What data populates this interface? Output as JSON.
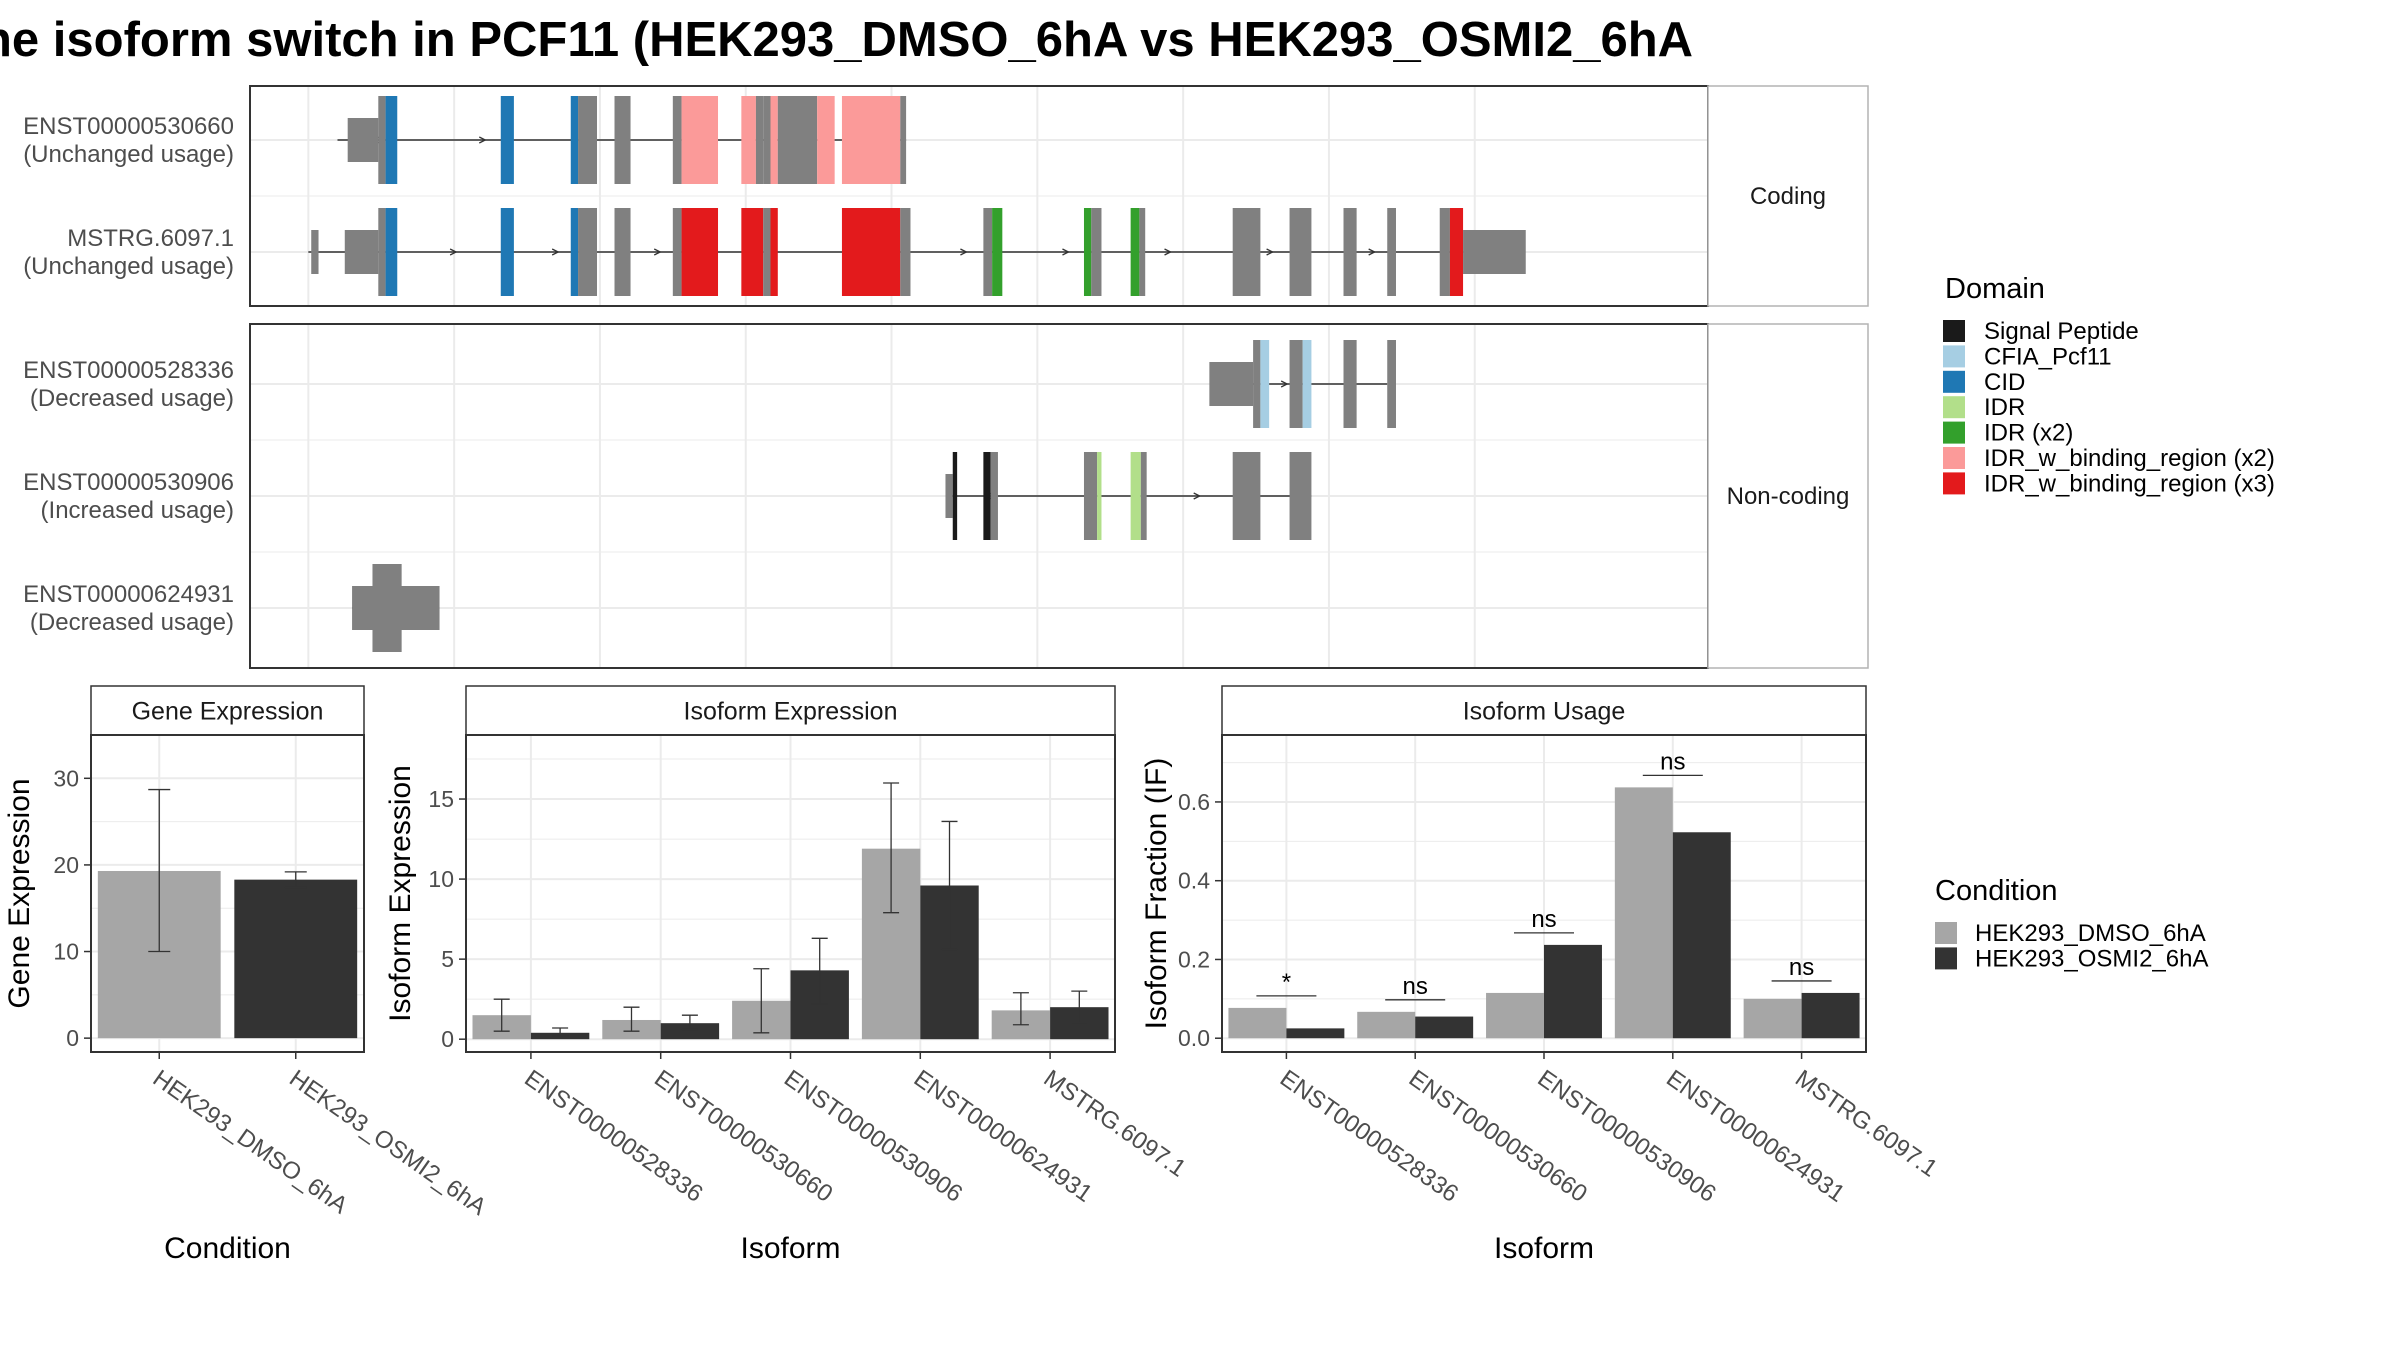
{
  "title": "he isoform switch in PCF11 (HEK293_DMSO_6hA vs HEK293_OSMI2_6hA",
  "colors": {
    "cond1": "#a6a6a6",
    "cond2": "#333333",
    "noncoding": "#808080",
    "grid": "#ebebeb",
    "panel_border": "#333333"
  },
  "domain_legend": {
    "title": "Domain",
    "items": [
      {
        "label": "Signal Peptide",
        "color": "#1a1a1a"
      },
      {
        "label": "CFIA_Pcf11",
        "color": "#a6cee3"
      },
      {
        "label": "CID",
        "color": "#1f78b4"
      },
      {
        "label": "IDR",
        "color": "#b2df8a"
      },
      {
        "label": "IDR (x2)",
        "color": "#33a02c"
      },
      {
        "label": "IDR_w_binding_region (x2)",
        "color": "#fb9a99"
      },
      {
        "label": "IDR_w_binding_region (x3)",
        "color": "#e31a1c"
      }
    ]
  },
  "condition_legend": {
    "title": "Condition",
    "items": [
      {
        "label": "HEK293_DMSO_6hA",
        "color": "#a6a6a6"
      },
      {
        "label": "HEK293_OSMI2_6hA",
        "color": "#333333"
      }
    ]
  },
  "structure": {
    "xlim": [
      0,
      100
    ],
    "facets": [
      {
        "label": "Coding",
        "transcripts": [
          {
            "name": "ENST00000530660",
            "status": "(Unchanged usage)",
            "line": [
              6,
              45
            ],
            "exons": [
              [
                6.7,
                8.8,
                "utr"
              ],
              [
                8.8,
                9.3,
                "cds"
              ],
              [
                9.3,
                10.1,
                "CID"
              ],
              [
                17.2,
                18.1,
                "CID"
              ],
              [
                22,
                22.5,
                "CID"
              ],
              [
                22.5,
                23.8,
                "cds"
              ],
              [
                25,
                26.1,
                "cds"
              ],
              [
                29,
                29.6,
                "cds"
              ],
              [
                29.6,
                32.1,
                "IDR_w_binding_region (x2)"
              ],
              [
                33.7,
                34.7,
                "IDR_w_binding_region (x2)"
              ],
              [
                34.7,
                35.2,
                "cds"
              ],
              [
                35.2,
                35.7,
                "cds"
              ],
              [
                35.7,
                36.2,
                "IDR_w_binding_region (x2)"
              ],
              [
                36.2,
                38.9,
                "cds"
              ],
              [
                38.9,
                40.1,
                "IDR_w_binding_region (x2)"
              ],
              [
                40.6,
                44.6,
                "IDR_w_binding_region (x2)"
              ],
              [
                44.6,
                45,
                "cds"
              ]
            ]
          },
          {
            "name": "MSTRG.6097.1",
            "status": "(Unchanged usage)",
            "line": [
              4,
              87
            ],
            "exons": [
              [
                4.2,
                4.7,
                "utr"
              ],
              [
                6.5,
                8.8,
                "utr"
              ],
              [
                8.8,
                9.3,
                "cds"
              ],
              [
                9.3,
                10.1,
                "CID"
              ],
              [
                17.2,
                18.1,
                "CID"
              ],
              [
                22,
                22.5,
                "CID"
              ],
              [
                22.5,
                23.8,
                "cds"
              ],
              [
                25,
                26.1,
                "cds"
              ],
              [
                29,
                29.6,
                "cds"
              ],
              [
                29.6,
                32.1,
                "IDR_w_binding_region (x3)"
              ],
              [
                33.7,
                35.2,
                "IDR_w_binding_region (x3)"
              ],
              [
                35.2,
                35.7,
                "cds"
              ],
              [
                35.7,
                36.2,
                "IDR_w_binding_region (x3)"
              ],
              [
                40.6,
                44.6,
                "IDR_w_binding_region (x3)"
              ],
              [
                44.6,
                45.3,
                "cds"
              ],
              [
                50.3,
                50.9,
                "cds"
              ],
              [
                50.9,
                51.6,
                "IDR (x2)"
              ],
              [
                57.2,
                57.7,
                "IDR (x2)"
              ],
              [
                57.7,
                58.4,
                "cds"
              ],
              [
                60.4,
                61,
                "IDR (x2)"
              ],
              [
                61,
                61.4,
                "cds"
              ],
              [
                67.4,
                69.3,
                "cds"
              ],
              [
                71.3,
                72.8,
                "cds"
              ],
              [
                75,
                75.9,
                "cds"
              ],
              [
                78,
                78.6,
                "cds"
              ],
              [
                81.6,
                82.3,
                "cds"
              ],
              [
                82.3,
                83.2,
                "IDR_w_binding_region (x3)"
              ],
              [
                83.2,
                87.5,
                "utr"
              ]
            ]
          }
        ]
      },
      {
        "label": "Non-coding",
        "transcripts": [
          {
            "name": "ENST00000528336",
            "status": "(Decreased usage)",
            "line": [
              68,
              78
            ],
            "exons": [
              [
                65.8,
                68.8,
                "utr"
              ],
              [
                68.8,
                69.3,
                "cds"
              ],
              [
                69.3,
                69.9,
                "CFIA_Pcf11"
              ],
              [
                71.3,
                72.2,
                "cds"
              ],
              [
                72.2,
                72.8,
                "CFIA_Pcf11"
              ],
              [
                75,
                75.9,
                "cds"
              ],
              [
                78,
                78.6,
                "cds"
              ]
            ]
          },
          {
            "name": "ENST00000530906",
            "status": "(Increased usage)",
            "line": [
              48,
              72.8
            ],
            "exons": [
              [
                47.7,
                48.2,
                "utr"
              ],
              [
                48.2,
                48.5,
                "Signal Peptide"
              ],
              [
                50.3,
                50.8,
                "Signal Peptide"
              ],
              [
                50.8,
                51.3,
                "cds"
              ],
              [
                57.2,
                58.1,
                "cds"
              ],
              [
                58.1,
                58.4,
                "IDR"
              ],
              [
                60.4,
                61.1,
                "IDR"
              ],
              [
                61.1,
                61.5,
                "cds"
              ],
              [
                67.4,
                69.3,
                "cds"
              ],
              [
                71.3,
                72.8,
                "cds"
              ]
            ]
          },
          {
            "name": "ENST00000624931",
            "status": "(Decreased usage)",
            "line": [
              7,
              13
            ],
            "exons": [
              [
                7,
                13,
                "utr"
              ],
              [
                8.4,
                10.4,
                "tall"
              ]
            ]
          }
        ]
      }
    ]
  },
  "chart_data": [
    {
      "type": "bar",
      "title": "Gene Expression",
      "xlabel": "Condition",
      "ylabel": "Gene Expression",
      "categories": [
        "HEK293_DMSO_6hA",
        "HEK293_OSMI2_6hA"
      ],
      "values": [
        19.3,
        18.3
      ],
      "error_low": [
        10,
        17.4
      ],
      "error_high": [
        28.7,
        19.2
      ],
      "yticks": [
        0,
        10,
        20,
        30
      ],
      "ylim": [
        -1.6,
        35
      ]
    },
    {
      "type": "bar",
      "title": "Isoform Expression",
      "xlabel": "Isoform",
      "ylabel": "Isoform Expression",
      "categories": [
        "ENST00000528336",
        "ENST00000530660",
        "ENST00000530906",
        "ENST00000624931",
        "MSTRG.6097.1"
      ],
      "series": [
        {
          "name": "HEK293_DMSO_6hA",
          "values": [
            1.5,
            1.2,
            2.4,
            11.9,
            1.8
          ],
          "error_low": [
            0.5,
            0.5,
            0.4,
            7.9,
            0.9
          ],
          "error_high": [
            2.5,
            2.0,
            4.4,
            16.0,
            2.9
          ]
        },
        {
          "name": "HEK293_OSMI2_6hA",
          "values": [
            0.4,
            1.0,
            4.3,
            9.6,
            2.0
          ],
          "error_low": [
            0.2,
            0.6,
            2.2,
            5.6,
            1.0
          ],
          "error_high": [
            0.7,
            1.5,
            6.3,
            13.6,
            3.0
          ]
        }
      ],
      "yticks": [
        0,
        5,
        10,
        15
      ],
      "ylim": [
        -0.8,
        19
      ]
    },
    {
      "type": "bar",
      "title": "Isoform Usage",
      "xlabel": "Isoform",
      "ylabel": "Isoform Fraction (IF)",
      "categories": [
        "ENST00000528336",
        "ENST00000530660",
        "ENST00000530906",
        "ENST00000624931",
        "MSTRG.6097.1"
      ],
      "series": [
        {
          "name": "HEK293_DMSO_6hA",
          "values": [
            0.077,
            0.067,
            0.115,
            0.637,
            0.1
          ]
        },
        {
          "name": "HEK293_OSMI2_6hA",
          "values": [
            0.025,
            0.055,
            0.237,
            0.523,
            0.115
          ]
        }
      ],
      "significance": [
        "*",
        "ns",
        "ns",
        "ns",
        "ns"
      ],
      "yticks": [
        "0.0",
        "0.2",
        "0.4",
        "0.6"
      ],
      "ylim": [
        -0.035,
        0.77
      ]
    }
  ]
}
